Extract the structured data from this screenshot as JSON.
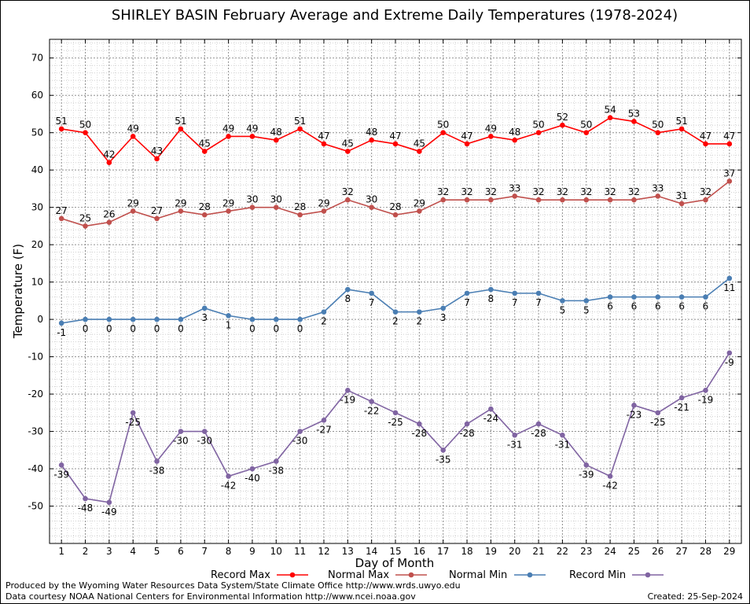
{
  "chart_data": {
    "type": "line",
    "title": "SHIRLEY BASIN February Average and Extreme Daily Temperatures (1978-2024)",
    "xlabel": "Day of Month",
    "ylabel": "Temperature (F)",
    "x": [
      1,
      2,
      3,
      4,
      5,
      6,
      7,
      8,
      9,
      10,
      11,
      12,
      13,
      14,
      15,
      16,
      17,
      18,
      19,
      20,
      21,
      22,
      23,
      24,
      25,
      26,
      27,
      28,
      29
    ],
    "xlim": [
      0.5,
      29.5
    ],
    "ylim": [
      -60,
      75
    ],
    "yticks": [
      -50,
      -40,
      -30,
      -20,
      -10,
      0,
      10,
      20,
      30,
      40,
      50,
      60,
      70
    ],
    "grid": true,
    "legend_position": "bottom",
    "series": [
      {
        "name": "Record Max",
        "color": "#ff0000",
        "values": [
          51,
          50,
          42,
          49,
          43,
          51,
          45,
          49,
          49,
          48,
          51,
          47,
          45,
          48,
          47,
          45,
          50,
          47,
          49,
          48,
          50,
          52,
          50,
          54,
          53,
          50,
          51,
          47,
          47
        ]
      },
      {
        "name": "Normal Max",
        "color": "#c0504d",
        "values": [
          27,
          25,
          26,
          29,
          27,
          29,
          28,
          29,
          30,
          30,
          28,
          29,
          32,
          30,
          28,
          29,
          32,
          32,
          32,
          33,
          32,
          32,
          32,
          32,
          32,
          33,
          31,
          32,
          37
        ]
      },
      {
        "name": "Normal Min",
        "color": "#4a7eb3",
        "values": [
          -1,
          0,
          0,
          0,
          0,
          0,
          3,
          1,
          0,
          0,
          0,
          2,
          8,
          7,
          2,
          2,
          3,
          7,
          8,
          7,
          7,
          5,
          5,
          6,
          6,
          6,
          6,
          6,
          11
        ]
      },
      {
        "name": "Record Min",
        "color": "#8064a2",
        "values": [
          -39,
          -48,
          -49,
          -25,
          -38,
          -30,
          -30,
          -42,
          -40,
          -38,
          -30,
          -27,
          -19,
          -22,
          -25,
          -28,
          -35,
          -28,
          -24,
          -31,
          -28,
          -31,
          -39,
          -42,
          -23,
          -25,
          -21,
          -19,
          -9
        ]
      }
    ]
  },
  "credits": {
    "producer": "Produced by the Wyoming Water Resources Data System/State Climate Office http://www.wrds.uwyo.edu",
    "source": "Data courtesy NOAA National Centers for Environmental Information http://www.ncei.noaa.gov",
    "created": "Created: 25-Sep-2024"
  }
}
